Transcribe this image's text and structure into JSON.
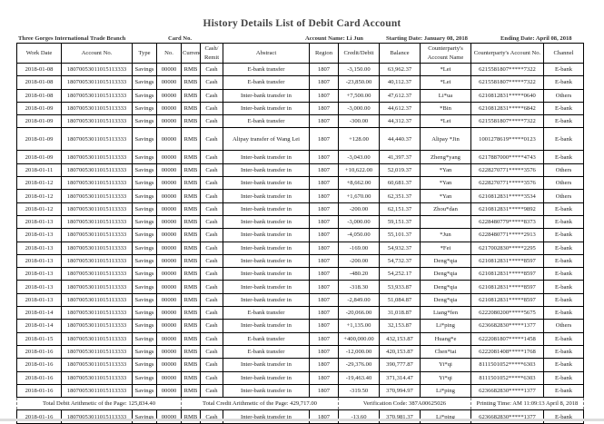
{
  "title": "History Details List of Debit Card Account",
  "meta": {
    "branch": "Three Gorges International Trade Branch",
    "card_no": "Card No.",
    "account_name": "Account Name: Li Jun",
    "starting_date": "Starting Date: January 08, 2018",
    "ending_date": "Ending Date: April 08, 2018"
  },
  "columns": [
    "Work Date",
    "Account No.",
    "Type",
    "No.",
    "Currency",
    "Cash/ Remit",
    "Abstract",
    "Region",
    "Credit/Debit",
    "Balance",
    "Counterparty's Account Name",
    "Counterparty's Account No.",
    "Channel"
  ],
  "rows": [
    [
      "2018-01-08",
      "18070053011015113333",
      "Savings",
      "00000",
      "RMB",
      "Cash",
      "E-bank transfer",
      "1807",
      "-3,150.00",
      "63,962.37",
      "*Lei",
      "6215581807*****7322",
      "E-bank"
    ],
    [
      "2018-01-08",
      "18070053011015113333",
      "Savings",
      "00000",
      "RMB",
      "Cash",
      "E-bank transfer",
      "1807",
      "-23,850.00",
      "40,112.37",
      "*Lei",
      "6215581807*****7322",
      "E-bank"
    ],
    [
      "2018-01-08",
      "18070053011015113333",
      "Savings",
      "00000",
      "RMB",
      "Cash",
      "Inter-bank transfer in",
      "1807",
      "+7,500.00",
      "47,612.37",
      "Li*ua",
      "6210812831*****0640",
      "Others"
    ],
    [
      "2018-01-09",
      "18070053011015113333",
      "Savings",
      "00000",
      "RMB",
      "Cash",
      "Inter-bank transfer in",
      "1807",
      "-3,000.00",
      "44,612.37",
      "*Bin",
      "6210812831*****6842",
      "E-bank"
    ],
    [
      "2018-01-09",
      "18070053011015113333",
      "Savings",
      "00000",
      "RMB",
      "Cash",
      "E-bank transfer",
      "1807",
      "-300.00",
      "44,312.37",
      "*Lei",
      "6215581807*****7322",
      "E-bank"
    ],
    [
      "2018-01-09",
      "18070053011015113333",
      "Savings",
      "00000",
      "RMB",
      "Cash",
      "Alipay transfer of Wang Lei",
      "1807",
      "+128.00",
      "44,440.37",
      "Alipay *Jin",
      "1001278619*****0123",
      "E-bank"
    ],
    [
      "2018-01-09",
      "18070053011015113333",
      "Savings",
      "00000",
      "RMB",
      "Cash",
      "Inter-bank transfer in",
      "1807",
      "-3,043.00",
      "41,397.37",
      "Zheng*yang",
      "6217887000*****4743",
      "E-bank"
    ],
    [
      "2018-01-11",
      "18070053011015113333",
      "Savings",
      "00000",
      "RMB",
      "Cash",
      "Inter-bank transfer in",
      "1807",
      "+10,622.00",
      "52,019.37",
      "*Yan",
      "6228270771*****3576",
      "Others"
    ],
    [
      "2018-01-12",
      "18070053011015113333",
      "Savings",
      "00000",
      "RMB",
      "Cash",
      "Inter-bank transfer in",
      "1807",
      "+8,662.00",
      "60,681.37",
      "*Yan",
      "6228270771*****3576",
      "Others"
    ],
    [
      "2018-01-12",
      "18070053011015113333",
      "Savings",
      "00000",
      "RMB",
      "Cash",
      "Inter-bank transfer in",
      "1807",
      "+1,670.00",
      "62,351.37",
      "*Yan",
      "6210812831*****3534",
      "Others"
    ],
    [
      "2018-01-12",
      "18070053011015113333",
      "Savings",
      "00000",
      "RMB",
      "Cash",
      "Inter-bank transfer in",
      "1807",
      "-200.00",
      "62,151.37",
      "Zhou*dan",
      "6210812831*****9892",
      "E-bank"
    ],
    [
      "2018-01-13",
      "18070053011015113333",
      "Savings",
      "00000",
      "RMB",
      "Cash",
      "Inter-bank transfer in",
      "1807",
      "-3,000.00",
      "59,151.37",
      "",
      "6228480779*****8373",
      "E-bank"
    ],
    [
      "2018-01-13",
      "18070053011015113333",
      "Savings",
      "00000",
      "RMB",
      "Cash",
      "Inter-bank transfer in",
      "1807",
      "-4,050.00",
      "55,101.37",
      "*Jun",
      "6228480771*****2913",
      "E-bank"
    ],
    [
      "2018-01-13",
      "18070053011015113333",
      "Savings",
      "00000",
      "RMB",
      "Cash",
      "Inter-bank transfer in",
      "1807",
      "-169.00",
      "54,932.37",
      "*Fei",
      "6217002830*****2295",
      "E-bank"
    ],
    [
      "2018-01-13",
      "18070053011015113333",
      "Savings",
      "00000",
      "RMB",
      "Cash",
      "Inter-bank transfer in",
      "1807",
      "-200.00",
      "54,732.37",
      "Deng*qia",
      "6210812831*****8597",
      "E-bank"
    ],
    [
      "2018-01-13",
      "18070053011015113333",
      "Savings",
      "00000",
      "RMB",
      "Cash",
      "Inter-bank transfer in",
      "1807",
      "-480.20",
      "54,252.17",
      "Deng*qia",
      "6210812831*****8597",
      "E-bank"
    ],
    [
      "2018-01-13",
      "18070053011015113333",
      "Savings",
      "00000",
      "RMB",
      "Cash",
      "Inter-bank transfer in",
      "1807",
      "-318.30",
      "53,933.87",
      "Deng*qia",
      "6210812831*****8597",
      "E-bank"
    ],
    [
      "2018-01-13",
      "18070053011015113333",
      "Savings",
      "00000",
      "RMB",
      "Cash",
      "Inter-bank transfer in",
      "1807",
      "-2,849.00",
      "51,084.87",
      "Deng*qia",
      "6210812831*****8597",
      "E-bank"
    ],
    [
      "2018-01-14",
      "18070053011015113333",
      "Savings",
      "00000",
      "RMB",
      "Cash",
      "E-bank transfer",
      "1807",
      "-20,066.00",
      "31,018.87",
      "Liang*fen",
      "6222080200*****5675",
      "E-bank"
    ],
    [
      "2018-01-14",
      "18070053011015113333",
      "Savings",
      "00000",
      "RMB",
      "Cash",
      "Inter-bank transfer in",
      "1807",
      "+1,135.00",
      "32,153.87",
      "Li*ping",
      "6236682830*****1377",
      "Others"
    ],
    [
      "2018-01-15",
      "18070053011015113333",
      "Savings",
      "00000",
      "RMB",
      "Cash",
      "E-bank transfer",
      "1807",
      "+400,000.00",
      "432,153.87",
      "Huang*e",
      "6222081807*****1458",
      "E-bank"
    ],
    [
      "2018-01-16",
      "18070053011015113333",
      "Savings",
      "00000",
      "RMB",
      "Cash",
      "E-bank transfer",
      "1807",
      "-12,000.00",
      "420,153.87",
      "Chen*tai",
      "6222081408*****1768",
      "E-bank"
    ],
    [
      "2018-01-16",
      "18070053011015113333",
      "Savings",
      "00000",
      "RMB",
      "Cash",
      "Inter-bank transfer in",
      "1807",
      "-29,376.00",
      "390,777.87",
      "Yi*qi",
      "8111501052*****6303",
      "E-bank"
    ],
    [
      "2018-01-16",
      "18070053011015113333",
      "Savings",
      "00000",
      "RMB",
      "Cash",
      "Inter-bank transfer in",
      "1807",
      "-19,463.40",
      "371,314.47",
      "Yi*qi",
      "8111501052*****6303",
      "E-bank"
    ],
    [
      "2018-01-16",
      "18070053011015113333",
      "Savings",
      "00000",
      "RMB",
      "Cash",
      "Inter-bank transfer in",
      "1807",
      "-319.50",
      "370,994.97",
      "Li*ping",
      "6236682830*****1377",
      "E-bank"
    ]
  ],
  "totals": {
    "debit": "Total Debit Arithmetic of the Page: 125,834.40",
    "credit": "Total Credit Arithmetic of the Page: 429,717.00",
    "verification": "Verification Code: 387A00625026",
    "printing": "Printing Time: AM 11:09:13 April 8, 2018"
  },
  "last_row": [
    "2018-01-16",
    "18070053011015113333",
    "Savings",
    "00000",
    "RMB",
    "Cash",
    "Inter-bank transfer in",
    "1807",
    "-13.60",
    "370,981.37",
    "Li*ping",
    "6236682830*****1377",
    "E-bank"
  ]
}
